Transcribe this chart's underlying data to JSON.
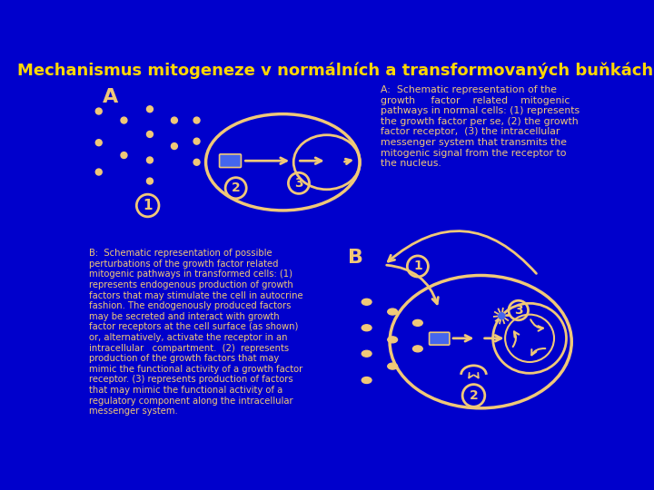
{
  "bg_color": "#0000CC",
  "title": "Mechanismus mitogeneze v normálních a transformovaných buňkách",
  "title_color": "#FFD700",
  "title_fontsize": 13,
  "draw_color": "#F0C878",
  "blue_rect": "#4466EE",
  "text_A_right": "A:  Schematic representation of the\ngrowth     factor    related    mitogenic\npathways in normal cells: (1) represents\nthe growth factor per se, (2) the growth\nfactor receptor,  (3) the intracellular\nmessenger system that transmits the\nmitogenic signal from the receptor to\nthe nucleus.",
  "text_B_left": "B:  Schematic representation of possible\nperturbations of the growth factor related\nmitogenic pathways in transformed cells: (1)\nrepresents endogenous production of growth\nfactors that may stimulate the cell in autocrine\nfashion. The endogenously produced factors\nmay be secreted and interact with growth\nfactor receptors at the cell surface (as shown)\nor, alternatively, activate the receptor in an\nintracellular   compartment.  (2)  represents\nproduction of the growth factors that may\nmimic the functional activity of a growth factor\nreceptor. (3) represents production of factors\nthat may mimic the functional activity of a\nregulatory component along the intracellular\nmessenger system."
}
